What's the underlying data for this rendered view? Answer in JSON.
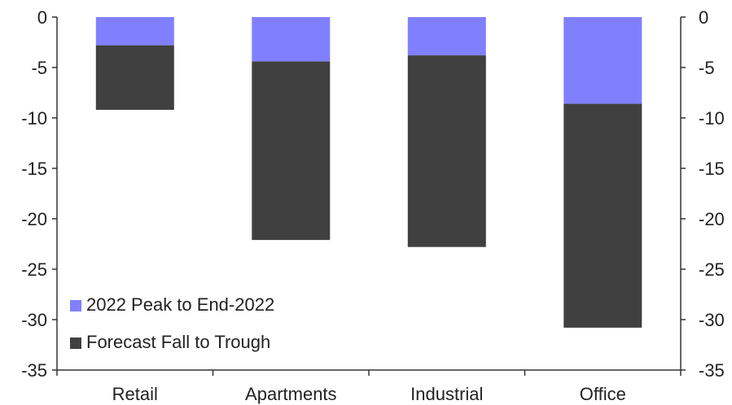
{
  "chart_data": {
    "type": "bar",
    "stacked": true,
    "categories": [
      "Retail",
      "Apartments",
      "Industrial",
      "Office"
    ],
    "series": [
      {
        "name": "2022 Peak to End-2022",
        "values": [
          -2.8,
          -4.4,
          -3.8,
          -8.6
        ],
        "color": "#8080ff"
      },
      {
        "name": "Forecast Fall to Trough",
        "values": [
          -6.4,
          -17.7,
          -19.0,
          -22.2
        ],
        "color": "#404040"
      }
    ],
    "ylim": [
      -35,
      0
    ],
    "yticks": [
      0,
      -5,
      -10,
      -15,
      -20,
      -25,
      -30,
      -35
    ],
    "ytick_labels": [
      "0",
      "-5",
      "-10",
      "-15",
      "-20",
      "-25",
      "-30",
      "-35"
    ],
    "secondary_y_axis": true,
    "grid": false,
    "legend_position": "bottom-left"
  }
}
